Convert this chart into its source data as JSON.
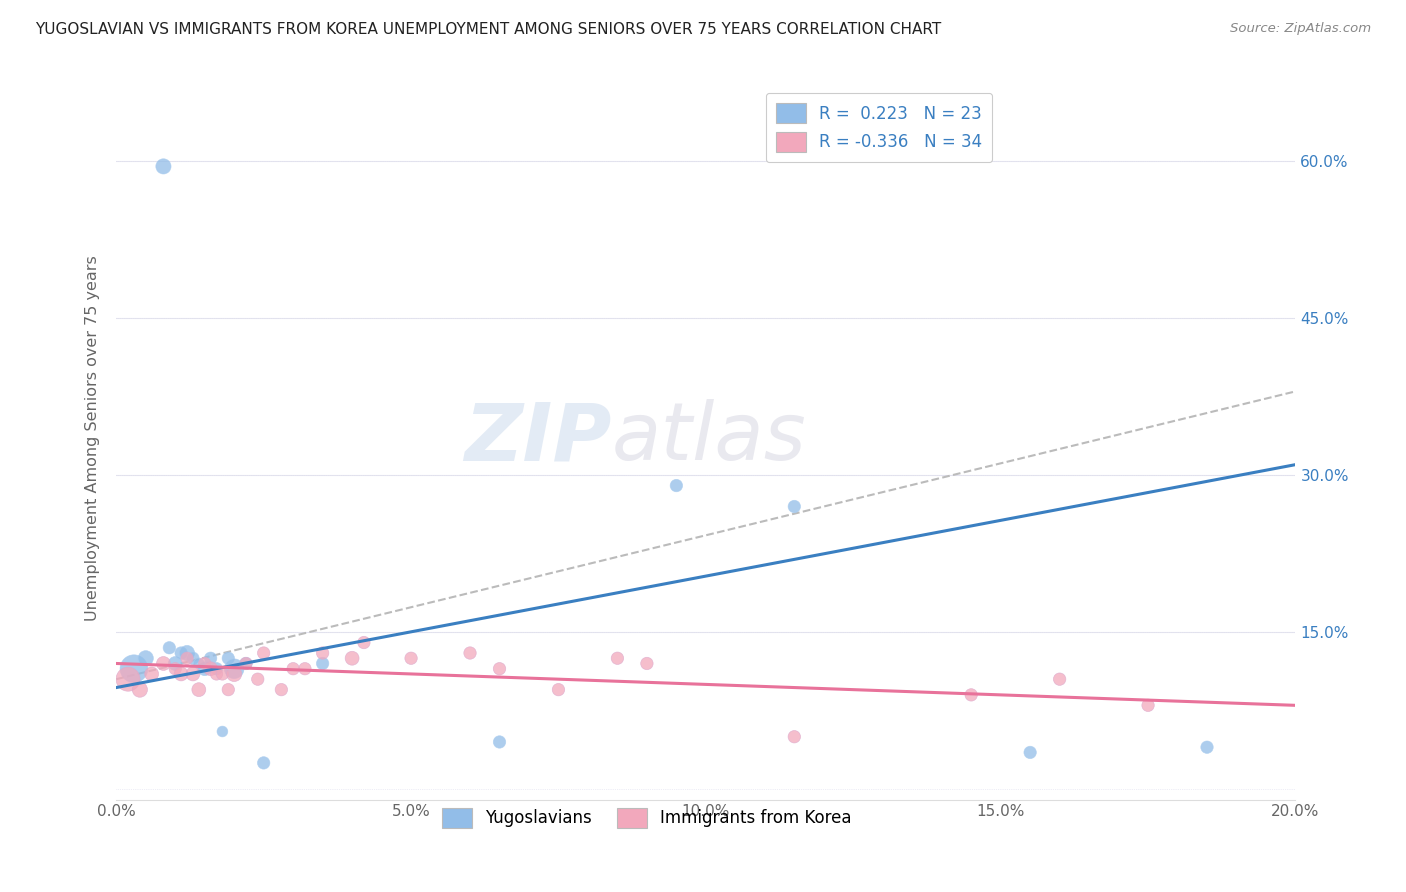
{
  "title": "YUGOSLAVIAN VS IMMIGRANTS FROM KOREA UNEMPLOYMENT AMONG SENIORS OVER 75 YEARS CORRELATION CHART",
  "source": "Source: ZipAtlas.com",
  "ylabel": "Unemployment Among Seniors over 75 years",
  "xlim": [
    0.0,
    0.2
  ],
  "ylim": [
    -0.01,
    0.68
  ],
  "xticks": [
    0.0,
    0.05,
    0.1,
    0.15,
    0.2
  ],
  "xtick_labels": [
    "0.0%",
    "5.0%",
    "10.0%",
    "15.0%",
    "20.0%"
  ],
  "yticks": [
    0.0,
    0.15,
    0.3,
    0.45,
    0.6
  ],
  "ytick_labels_right": [
    "",
    "15.0%",
    "30.0%",
    "45.0%",
    "60.0%"
  ],
  "blue_R": 0.223,
  "blue_N": 23,
  "pink_R": -0.336,
  "pink_N": 34,
  "blue_color": "#92BDE8",
  "pink_color": "#F2A8BC",
  "blue_line_color": "#3A7FC1",
  "pink_line_color": "#E8729A",
  "gray_line_color": "#BBBBBB",
  "bg_color": "#FFFFFF",
  "grid_color": "#E5E5EE",
  "watermark_zip": "ZIP",
  "watermark_atlas": "atlas",
  "legend_blue_label": "Yugoslavians",
  "legend_pink_label": "Immigrants from Korea",
  "blue_scatter_x": [
    0.003,
    0.005,
    0.008,
    0.009,
    0.01,
    0.011,
    0.012,
    0.013,
    0.014,
    0.015,
    0.016,
    0.017,
    0.018,
    0.019,
    0.02,
    0.022,
    0.025,
    0.035,
    0.065,
    0.095,
    0.115,
    0.155,
    0.185
  ],
  "blue_scatter_y": [
    0.115,
    0.125,
    0.595,
    0.135,
    0.12,
    0.13,
    0.13,
    0.125,
    0.12,
    0.115,
    0.125,
    0.115,
    0.055,
    0.125,
    0.115,
    0.12,
    0.025,
    0.12,
    0.045,
    0.29,
    0.27,
    0.035,
    0.04
  ],
  "blue_scatter_sizes": [
    400,
    120,
    120,
    80,
    100,
    80,
    120,
    80,
    60,
    100,
    80,
    80,
    60,
    80,
    200,
    80,
    80,
    80,
    80,
    80,
    80,
    80,
    80
  ],
  "pink_scatter_x": [
    0.002,
    0.004,
    0.006,
    0.008,
    0.01,
    0.011,
    0.012,
    0.013,
    0.014,
    0.015,
    0.016,
    0.017,
    0.018,
    0.019,
    0.02,
    0.022,
    0.024,
    0.025,
    0.028,
    0.03,
    0.032,
    0.035,
    0.04,
    0.042,
    0.05,
    0.06,
    0.065,
    0.075,
    0.085,
    0.09,
    0.115,
    0.145,
    0.16,
    0.175
  ],
  "pink_scatter_y": [
    0.105,
    0.095,
    0.11,
    0.12,
    0.115,
    0.11,
    0.125,
    0.11,
    0.095,
    0.12,
    0.115,
    0.11,
    0.11,
    0.095,
    0.11,
    0.12,
    0.105,
    0.13,
    0.095,
    0.115,
    0.115,
    0.13,
    0.125,
    0.14,
    0.125,
    0.13,
    0.115,
    0.095,
    0.125,
    0.12,
    0.05,
    0.09,
    0.105,
    0.08
  ],
  "pink_scatter_sizes": [
    300,
    120,
    100,
    100,
    80,
    100,
    80,
    100,
    100,
    80,
    100,
    80,
    80,
    80,
    120,
    80,
    80,
    80,
    80,
    80,
    80,
    80,
    100,
    80,
    80,
    80,
    80,
    80,
    80,
    80,
    80,
    80,
    80,
    80
  ],
  "blue_trend_x0": 0.0,
  "blue_trend_y0": 0.097,
  "blue_trend_x1": 0.2,
  "blue_trend_y1": 0.31,
  "pink_trend_x0": 0.0,
  "pink_trend_y0": 0.12,
  "pink_trend_x1": 0.2,
  "pink_trend_y1": 0.08,
  "gray_trend_x0": 0.0,
  "gray_trend_y0": 0.105,
  "gray_trend_x1": 0.2,
  "gray_trend_y1": 0.38
}
